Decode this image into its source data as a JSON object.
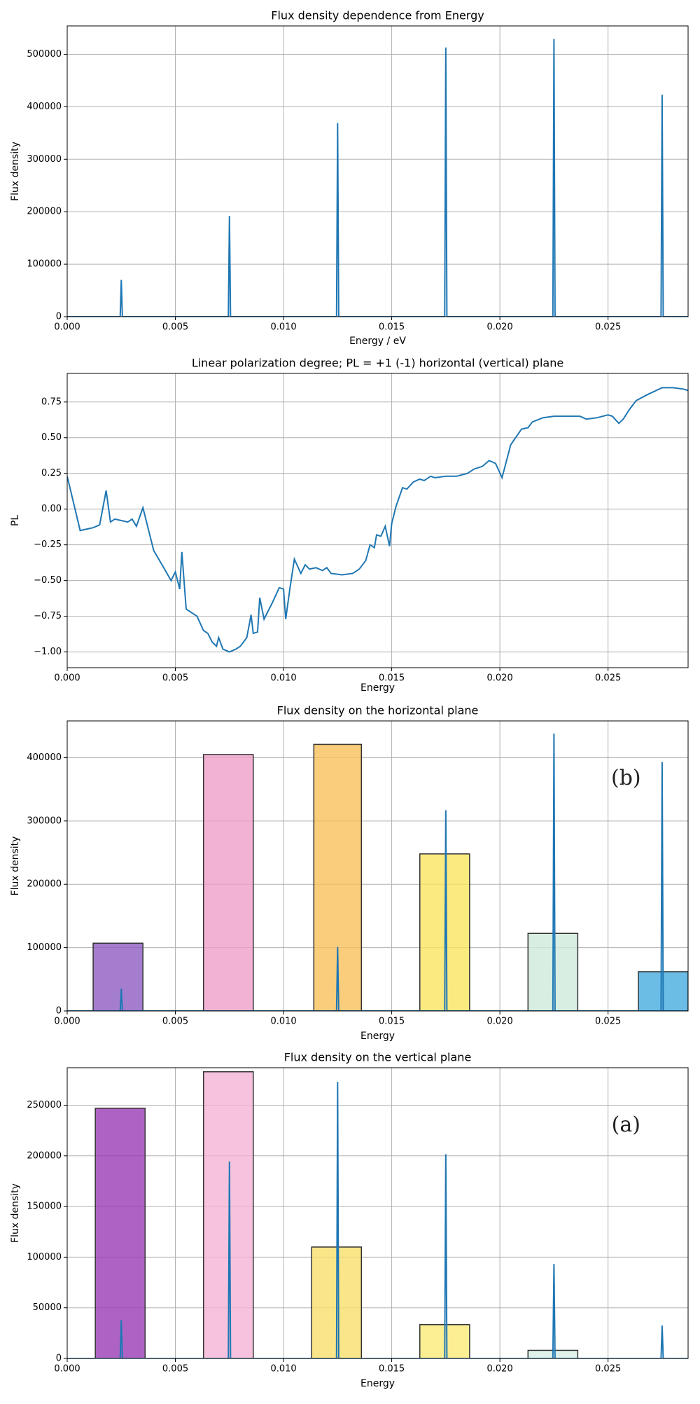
{
  "chart_data": [
    {
      "type": "line",
      "title": "Flux density dependence from Energy",
      "xlabel": "Energy / eV",
      "ylabel": "Flux density",
      "color": "#1f77b4",
      "grid": true,
      "xlim": [
        0,
        0.0287
      ],
      "ylim": [
        0,
        554000
      ],
      "xticks": [
        {
          "value": 0,
          "label": "0.000"
        },
        {
          "value": 0.005,
          "label": "0.005"
        },
        {
          "value": 0.01,
          "label": "0.010"
        },
        {
          "value": 0.015,
          "label": "0.015"
        },
        {
          "value": 0.02,
          "label": "0.020"
        },
        {
          "value": 0.025,
          "label": "0.025"
        }
      ],
      "yticks": [
        0,
        100000,
        200000,
        300000,
        400000,
        500000
      ],
      "x": [
        0,
        0.00245,
        0.0025,
        0.00255,
        0.00745,
        0.0075,
        0.00755,
        0.01245,
        0.0125,
        0.01255,
        0.01745,
        0.0175,
        0.01755,
        0.02245,
        0.0225,
        0.02255,
        0.02745,
        0.0275,
        0.02755,
        0.0287
      ],
      "values": [
        0,
        0,
        70000,
        0,
        0,
        192000,
        0,
        0,
        369000,
        0,
        0,
        513000,
        0,
        0,
        529000,
        0,
        0,
        423000,
        0,
        0
      ]
    },
    {
      "type": "line",
      "title": "Linear polarization degree; PL = +1 (-1)  horizontal (vertical) plane",
      "xlabel": "Energy",
      "ylabel": "PL",
      "color": "#1f77b4",
      "grid": true,
      "xlim": [
        0,
        0.0287
      ],
      "ylim": [
        -1.11,
        0.95
      ],
      "xticks": [
        {
          "value": 0,
          "label": "0.000"
        },
        {
          "value": 0.005,
          "label": "0.005"
        },
        {
          "value": 0.01,
          "label": "0.010"
        },
        {
          "value": 0.015,
          "label": "0.015"
        },
        {
          "value": 0.02,
          "label": "0.020"
        },
        {
          "value": 0.025,
          "label": "0.025"
        }
      ],
      "yticks": [
        {
          "value": -1,
          "label": "−1.00"
        },
        {
          "value": -0.75,
          "label": "−0.75"
        },
        {
          "value": -0.5,
          "label": "−0.50"
        },
        {
          "value": -0.25,
          "label": "−0.25"
        },
        {
          "value": 0,
          "label": "0.00"
        },
        {
          "value": 0.25,
          "label": "0.25"
        },
        {
          "value": 0.5,
          "label": "0.50"
        },
        {
          "value": 0.75,
          "label": "0.75"
        }
      ],
      "x": [
        0,
        0.0006,
        0.0012,
        0.0015,
        0.0018,
        0.002,
        0.0022,
        0.0025,
        0.0028,
        0.003,
        0.0032,
        0.0035,
        0.004,
        0.0045,
        0.0048,
        0.005,
        0.0052,
        0.0053,
        0.0055,
        0.006,
        0.0063,
        0.0065,
        0.0067,
        0.0069,
        0.007,
        0.0072,
        0.0075,
        0.0078,
        0.008,
        0.0083,
        0.0085,
        0.0086,
        0.0088,
        0.0089,
        0.0091,
        0.0095,
        0.0098,
        0.01,
        0.0101,
        0.0103,
        0.0105,
        0.0108,
        0.011,
        0.0112,
        0.0115,
        0.0118,
        0.012,
        0.0122,
        0.0127,
        0.0132,
        0.0135,
        0.0138,
        0.014,
        0.0142,
        0.0143,
        0.0145,
        0.0147,
        0.0149,
        0.015,
        0.0152,
        0.0155,
        0.0157,
        0.016,
        0.0163,
        0.0165,
        0.0168,
        0.017,
        0.0175,
        0.018,
        0.0185,
        0.0188,
        0.0192,
        0.0195,
        0.0198,
        0.0201,
        0.0205,
        0.021,
        0.0213,
        0.0215,
        0.022,
        0.0225,
        0.023,
        0.0237,
        0.024,
        0.0245,
        0.025,
        0.0252,
        0.0255,
        0.0257,
        0.026,
        0.0263,
        0.0268,
        0.0275,
        0.028,
        0.0285,
        0.0287
      ],
      "values": [
        0.23,
        -0.15,
        -0.13,
        -0.11,
        0.13,
        -0.09,
        -0.07,
        -0.08,
        -0.09,
        -0.07,
        -0.12,
        0.01,
        -0.29,
        -0.42,
        -0.5,
        -0.44,
        -0.56,
        -0.3,
        -0.7,
        -0.75,
        -0.85,
        -0.87,
        -0.93,
        -0.96,
        -0.9,
        -0.98,
        -1.0,
        -0.98,
        -0.96,
        -0.9,
        -0.74,
        -0.87,
        -0.86,
        -0.62,
        -0.77,
        -0.65,
        -0.55,
        -0.56,
        -0.77,
        -0.55,
        -0.35,
        -0.45,
        -0.39,
        -0.42,
        -0.41,
        -0.43,
        -0.41,
        -0.45,
        -0.46,
        -0.45,
        -0.42,
        -0.36,
        -0.25,
        -0.27,
        -0.18,
        -0.19,
        -0.12,
        -0.26,
        -0.1,
        0.02,
        0.15,
        0.14,
        0.19,
        0.21,
        0.2,
        0.23,
        0.22,
        0.23,
        0.23,
        0.25,
        0.28,
        0.3,
        0.34,
        0.32,
        0.22,
        0.45,
        0.56,
        0.57,
        0.61,
        0.64,
        0.65,
        0.65,
        0.65,
        0.63,
        0.64,
        0.66,
        0.65,
        0.6,
        0.63,
        0.7,
        0.76,
        0.8,
        0.85,
        0.85,
        0.84,
        0.83
      ]
    },
    {
      "type": "combo",
      "title": "Flux density on the horizontal plane",
      "xlabel": "Energy",
      "ylabel": "Flux density",
      "annotation": "(b)",
      "color": "#1f77b4",
      "grid": true,
      "xlim": [
        0,
        0.0287
      ],
      "ylim": [
        0,
        458000
      ],
      "xticks": [
        {
          "value": 0,
          "label": "0.000"
        },
        {
          "value": 0.005,
          "label": "0.005"
        },
        {
          "value": 0.01,
          "label": "0.010"
        },
        {
          "value": 0.015,
          "label": "0.015"
        },
        {
          "value": 0.02,
          "label": "0.020"
        },
        {
          "value": 0.025,
          "label": "0.025"
        }
      ],
      "yticks": [
        0,
        100000,
        200000,
        300000,
        400000
      ],
      "bar_x0": [
        0.0012,
        0.0063,
        0.0114,
        0.0163,
        0.0213,
        0.0264
      ],
      "bar_x1": [
        0.0035,
        0.0086,
        0.0136,
        0.0186,
        0.0236,
        0.0287
      ],
      "bar_values": [
        107000,
        405000,
        421000,
        248000,
        122500,
        62000
      ],
      "bar_colors": [
        "#8e5cc2",
        "#ef9fc8",
        "#f8c05a",
        "#f9e560",
        "#cfeadb",
        "#46ade0"
      ],
      "x": [
        0,
        0.00245,
        0.0025,
        0.00255,
        0.01245,
        0.0125,
        0.01255,
        0.01745,
        0.0175,
        0.01755,
        0.02245,
        0.0225,
        0.02255,
        0.02745,
        0.0275,
        0.02755,
        0.0287
      ],
      "values": [
        0,
        0,
        35000,
        0,
        0,
        101000,
        0,
        0,
        317000,
        0,
        0,
        438000,
        0,
        0,
        393000,
        0,
        0
      ]
    },
    {
      "type": "combo",
      "title": "Flux density on the vertical plane",
      "xlabel": "Energy",
      "ylabel": "Flux density",
      "annotation": "(a)",
      "color": "#1f77b4",
      "grid": true,
      "xlim": [
        0,
        0.0287
      ],
      "ylim": [
        0,
        287000
      ],
      "xticks": [
        {
          "value": 0,
          "label": "0.000"
        },
        {
          "value": 0.005,
          "label": "0.005"
        },
        {
          "value": 0.01,
          "label": "0.010"
        },
        {
          "value": 0.015,
          "label": "0.015"
        },
        {
          "value": 0.02,
          "label": "0.020"
        },
        {
          "value": 0.025,
          "label": "0.025"
        }
      ],
      "yticks": [
        0,
        50000,
        100000,
        150000,
        200000,
        250000
      ],
      "bar_x0": [
        0.0013,
        0.0063,
        0.0113,
        0.0163,
        0.0213
      ],
      "bar_x1": [
        0.0036,
        0.0086,
        0.0136,
        0.0186,
        0.0236
      ],
      "bar_values": [
        247000,
        283000,
        110000,
        33400,
        8000
      ],
      "bar_colors": [
        "#9a3cb5",
        "#f4b3d4",
        "#f9df6a",
        "#faea78",
        "#d6efe6"
      ],
      "x": [
        0,
        0.00245,
        0.0025,
        0.00255,
        0.00745,
        0.0075,
        0.00755,
        0.01245,
        0.0125,
        0.01255,
        0.01745,
        0.0175,
        0.01755,
        0.02245,
        0.0225,
        0.02255,
        0.02745,
        0.0275,
        0.02755,
        0.0287
      ],
      "values": [
        0,
        0,
        37900,
        0,
        0,
        194500,
        0,
        0,
        273000,
        0,
        0,
        201600,
        0,
        0,
        93300,
        0,
        0,
        32600,
        0,
        0
      ]
    }
  ]
}
